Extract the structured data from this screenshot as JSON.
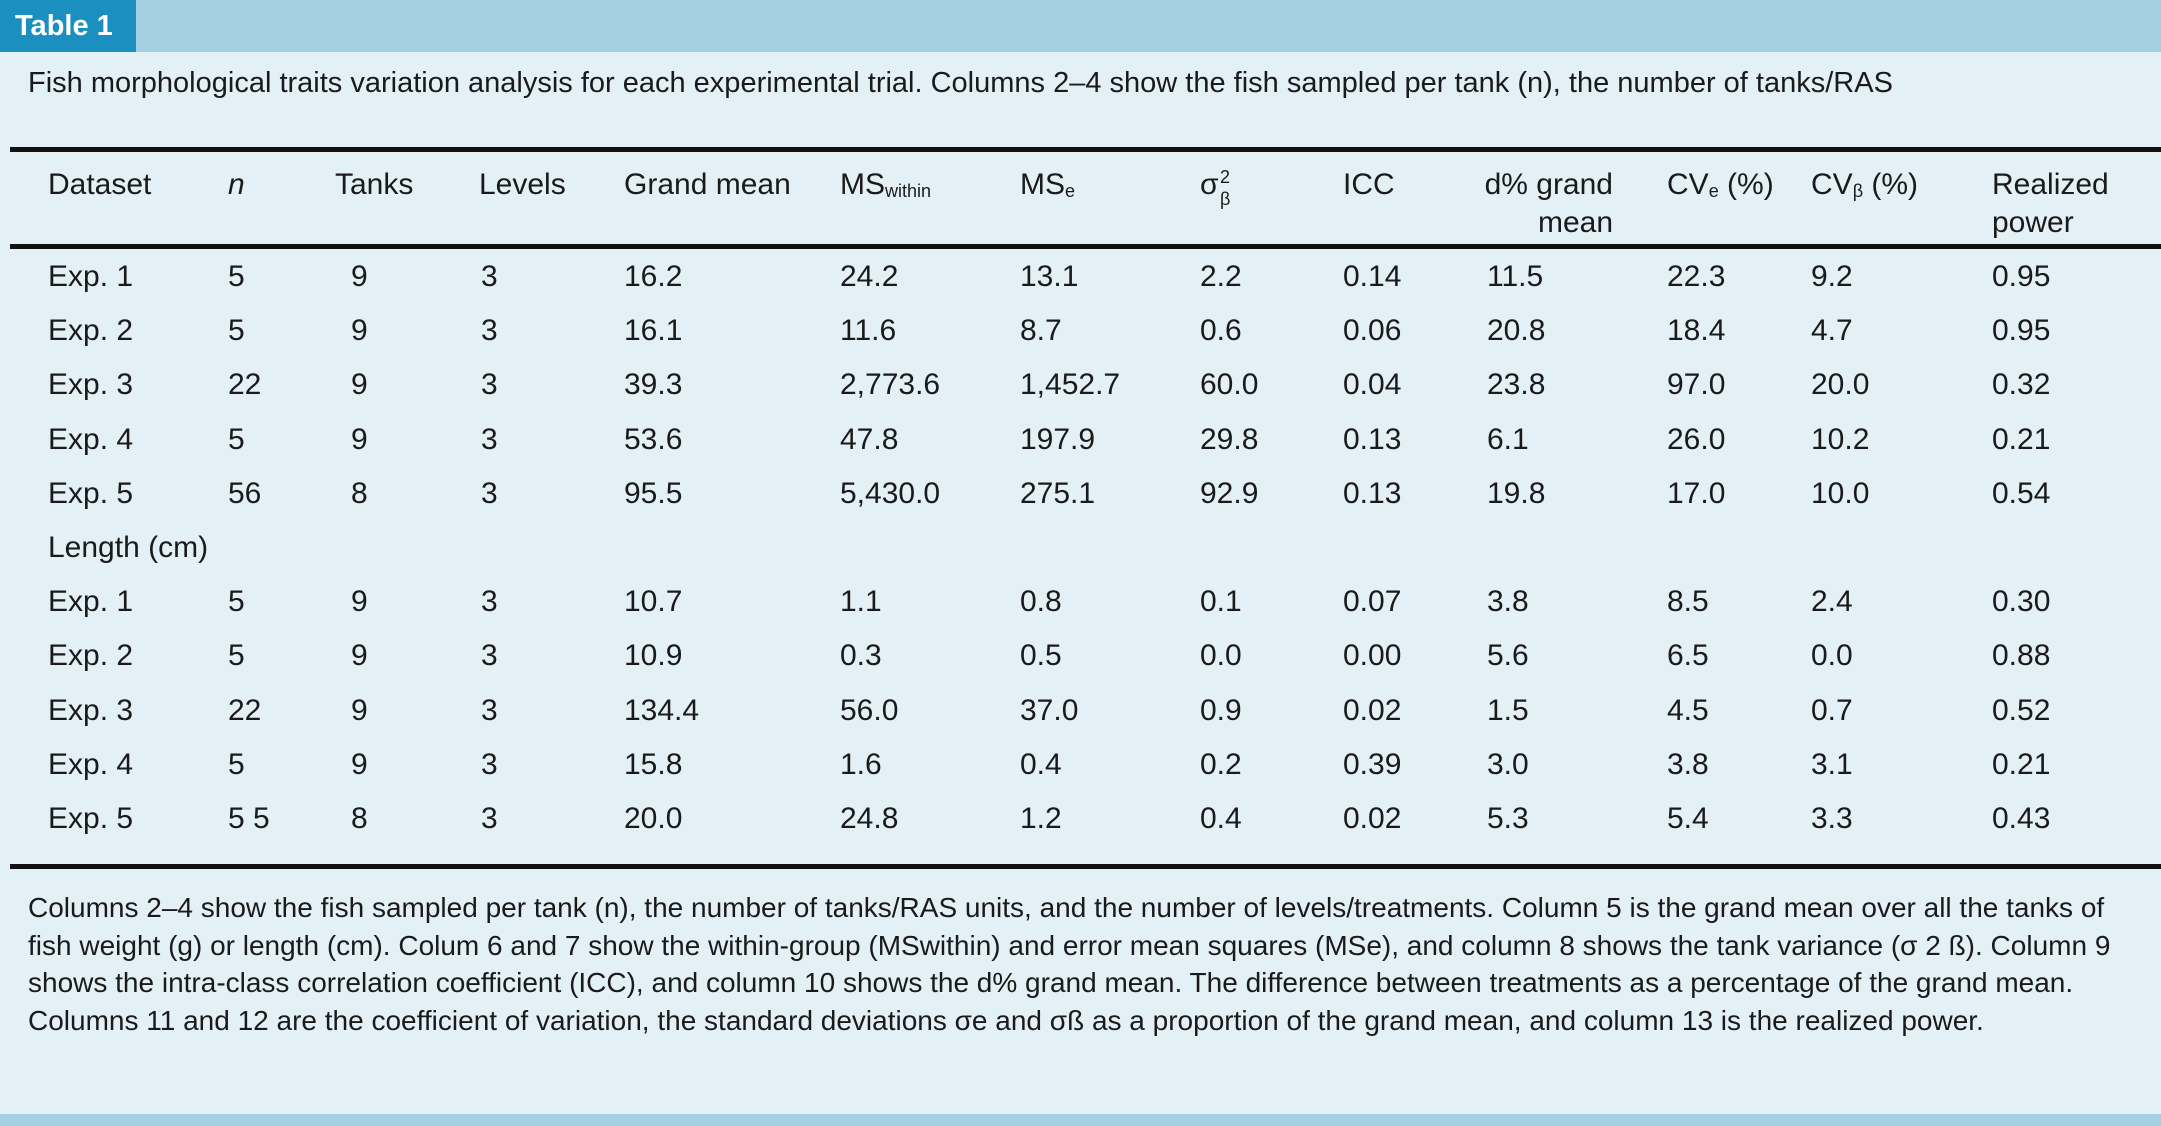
{
  "tag": "Table 1",
  "caption": "Fish morphological traits variation analysis for each experimental trial. Columns 2–4 show the fish sampled per tank (n), the number of tanks/RAS",
  "headers": {
    "dataset": "Dataset",
    "n": "n",
    "tanks": "Tanks",
    "levels": "Levels",
    "grand_mean": "Grand mean",
    "ms_within_main": "MS",
    "ms_within_sub": "within",
    "ms_e_main": "MS",
    "ms_e_sub": "e",
    "sigma_main": "σ",
    "sigma_sup": "2",
    "sigma_sub": "β",
    "icc": "ICC",
    "d_grand_line1": "d% grand",
    "d_grand_line2": "mean",
    "cv_e_main": "CV",
    "cv_e_sub": "e",
    "cv_e_tail": " (%)",
    "cv_b_main": "CV",
    "cv_b_sub": "β",
    "cv_b_tail": " (%)",
    "power_line1": "Realized",
    "power_line2": "power"
  },
  "rows": [
    [
      "Exp. 1",
      "5",
      "9",
      "3",
      "16.2",
      "24.2",
      "13.1",
      "2.2",
      "0.14",
      "11.5",
      "22.3",
      "9.2",
      "0.95"
    ],
    [
      "Exp. 2",
      "5",
      "9",
      "3",
      "16.1",
      "11.6",
      "8.7",
      "0.6",
      "0.06",
      "20.8",
      "18.4",
      "4.7",
      "0.95"
    ],
    [
      "Exp. 3",
      "22",
      "9",
      "3",
      "39.3",
      "2,773.6",
      "1,452.7",
      "60.0",
      "0.04",
      "23.8",
      "97.0",
      "20.0",
      "0.32"
    ],
    [
      "Exp. 4",
      "5",
      "9",
      "3",
      "53.6",
      "47.8",
      "197.9",
      "29.8",
      "0.13",
      "6.1",
      "26.0",
      "10.2",
      "0.21"
    ],
    [
      "Exp. 5",
      "56",
      "8",
      "3",
      "95.5",
      "5,430.0",
      "275.1",
      "92.9",
      "0.13",
      "19.8",
      "17.0",
      "10.0",
      "0.54"
    ],
    [
      "Length (cm)"
    ],
    [
      "Exp. 1",
      "5",
      "9",
      "3",
      "10.7",
      "1.1",
      "0.8",
      "0.1",
      "0.07",
      "3.8",
      "8.5",
      "2.4",
      "0.30"
    ],
    [
      "Exp. 2",
      "5",
      "9",
      "3",
      "10.9",
      "0.3",
      "0.5",
      "0.0",
      "0.00",
      "5.6",
      "6.5",
      "0.0",
      "0.88"
    ],
    [
      "Exp. 3",
      "22",
      "9",
      "3",
      "134.4",
      "56.0",
      "37.0",
      "0.9",
      "0.02",
      "1.5",
      "4.5",
      "0.7",
      "0.52"
    ],
    [
      "Exp. 4",
      "5",
      "9",
      "3",
      "15.8",
      "1.6",
      "0.4",
      "0.2",
      "0.39",
      "3.0",
      "3.8",
      "3.1",
      "0.21"
    ],
    [
      "Exp. 5",
      "5  5",
      "8",
      "3",
      "20.0",
      "24.8",
      "1.2",
      "0.4",
      "0.02",
      "5.3",
      "5.4",
      "3.3",
      "0.43"
    ]
  ],
  "footnote": "Columns 2–4 show the fish sampled per tank (n), the number of tanks/RAS units, and the number of levels/treatments. Column 5 is the grand mean over all the tanks of fish weight (g) or length (cm). Colum 6 and 7 show the within-group (MSwithin) and error mean squares (MSe), and column 8 shows the tank variance (σ 2 ß). Column 9 shows the intra-class correlation coefficient (ICC), and column 10 shows the d% grand mean. The difference between treatments as a percentage of the grand mean. Columns 11 and 12 are the coefficient of variation, the standard deviations σe and σß as a proportion of the grand mean, and column 13 is the realized power."
}
